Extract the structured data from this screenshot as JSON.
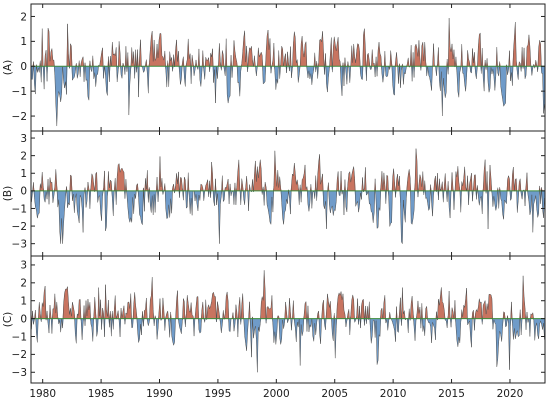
{
  "chart_data": {
    "type": "area",
    "x_range": [
      1979,
      2023
    ],
    "x_ticks": [
      1980,
      1985,
      1990,
      1995,
      2000,
      2005,
      2010,
      2015,
      2020
    ],
    "colors": {
      "positive": "#c87460",
      "negative": "#6f9bc9",
      "zero_line": "#3a8a3a"
    },
    "panels": [
      {
        "label": "(A)",
        "ylim": [
          -2.6,
          2.5
        ],
        "yticks": [
          -2,
          -1,
          0,
          1,
          2
        ],
        "seed": 11,
        "amp": 0.9,
        "pos_max": 2.2,
        "neg_min": -2.4
      },
      {
        "label": "(B)",
        "ylim": [
          -3.7,
          3.4
        ],
        "yticks": [
          -3,
          -2,
          -1,
          0,
          1,
          2,
          3
        ],
        "seed": 23,
        "amp": 1.15,
        "pos_max": 2.4,
        "neg_min": -3.0
      },
      {
        "label": "(C)",
        "ylim": [
          -3.6,
          3.5
        ],
        "yticks": [
          -3,
          -2,
          -1,
          0,
          1,
          2,
          3
        ],
        "seed": 37,
        "amp": 1.1,
        "pos_max": 2.7,
        "neg_min": -3.0
      }
    ]
  }
}
